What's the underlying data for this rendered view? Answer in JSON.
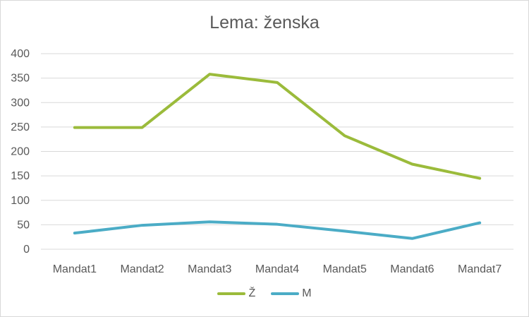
{
  "chart_data": {
    "type": "line",
    "title": "Lema: ženska",
    "xlabel": "",
    "ylabel": "",
    "categories": [
      "Mandat1",
      "Mandat2",
      "Mandat3",
      "Mandat4",
      "Mandat5",
      "Mandat6",
      "Mandat7"
    ],
    "ylim": [
      0,
      400
    ],
    "yticks": [
      0,
      50,
      100,
      150,
      200,
      250,
      300,
      350,
      400
    ],
    "grid": true,
    "legend_position": "bottom",
    "series": [
      {
        "name": "Ž",
        "color": "#9BBB3B",
        "values": [
          249,
          249,
          358,
          341,
          232,
          174,
          145
        ]
      },
      {
        "name": "M",
        "color": "#4BACC6",
        "values": [
          33,
          49,
          56,
          51,
          37,
          22,
          54
        ]
      }
    ]
  }
}
